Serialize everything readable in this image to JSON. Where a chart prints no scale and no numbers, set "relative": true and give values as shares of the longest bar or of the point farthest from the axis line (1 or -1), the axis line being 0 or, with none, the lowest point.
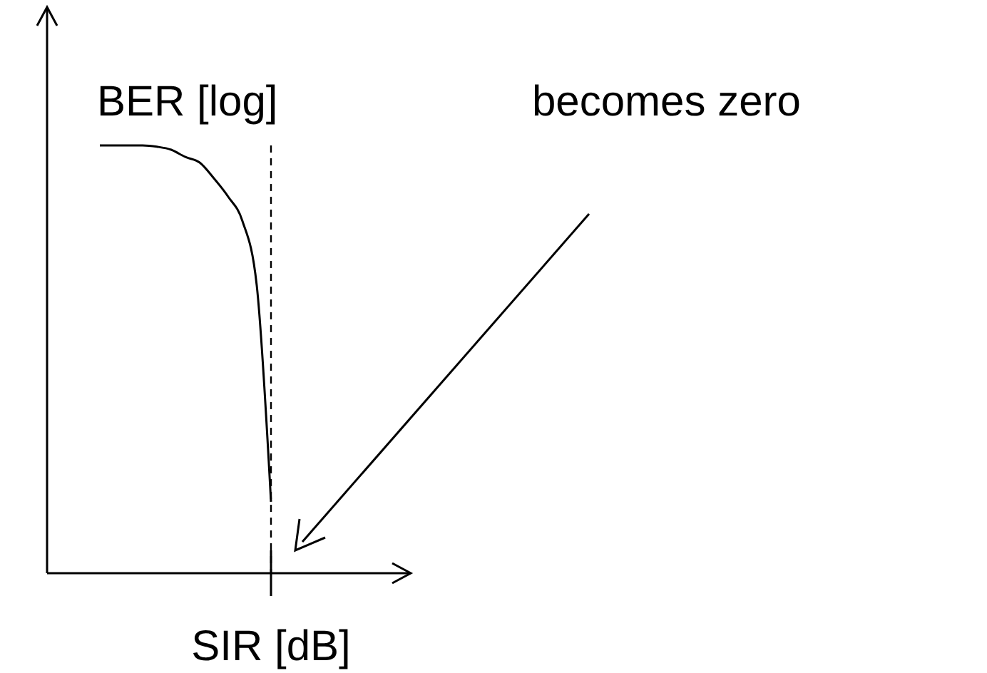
{
  "chart_data": {
    "type": "line",
    "relative": true,
    "xlabel": "SIR [dB]",
    "ylabel": "BER [log]",
    "categories": [
      null,
      null,
      null,
      null,
      null,
      null,
      null,
      null,
      null,
      null,
      null,
      null,
      null
    ],
    "series": [
      {
        "color": "#000000",
        "values": [
          1,
          1,
          1,
          1,
          0.997,
          0.99,
          0.973,
          0.96,
          0.923,
          0.88,
          0.823,
          0.673,
          0.167
        ]
      }
    ],
    "annotations": [
      "becomes zero"
    ],
    "grid": false,
    "marker": "none",
    "line_style": "solid"
  }
}
